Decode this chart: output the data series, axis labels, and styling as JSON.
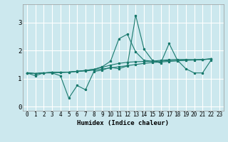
{
  "xlabel": "Humidex (Indice chaleur)",
  "background_color": "#cce8ee",
  "grid_color": "#ffffff",
  "line_color": "#1a7a6e",
  "xlim": [
    -0.5,
    23.5
  ],
  "ylim": [
    -0.15,
    3.65
  ],
  "xticks": [
    0,
    1,
    2,
    3,
    4,
    5,
    6,
    7,
    8,
    9,
    10,
    11,
    12,
    13,
    14,
    15,
    16,
    17,
    18,
    19,
    20,
    21,
    22,
    23
  ],
  "yticks": [
    0,
    1,
    2,
    3
  ],
  "s1_x": [
    0,
    1,
    2,
    3,
    4,
    5,
    6,
    7,
    8,
    9,
    10,
    11,
    12,
    13,
    14,
    15,
    16,
    17,
    18,
    19,
    20,
    21,
    22
  ],
  "s1_y": [
    1.2,
    1.1,
    1.2,
    1.2,
    1.1,
    0.3,
    0.75,
    0.6,
    1.25,
    1.3,
    1.4,
    1.35,
    1.45,
    3.25,
    2.05,
    1.65,
    1.55,
    2.25,
    1.65,
    1.35,
    1.2,
    1.2,
    1.65
  ],
  "s2_x": [
    0,
    1,
    2,
    3,
    4,
    5,
    6,
    7,
    8,
    9,
    10,
    11,
    12,
    13,
    14,
    15,
    16,
    17,
    18,
    19,
    20,
    21,
    22
  ],
  "s2_y": [
    1.2,
    1.18,
    1.2,
    1.22,
    1.22,
    1.23,
    1.25,
    1.27,
    1.3,
    1.34,
    1.38,
    1.42,
    1.46,
    1.5,
    1.54,
    1.57,
    1.59,
    1.61,
    1.63,
    1.65,
    1.66,
    1.67,
    1.7
  ],
  "s3_x": [
    0,
    1,
    2,
    3,
    4,
    5,
    6,
    7,
    8,
    9,
    10,
    11,
    12,
    13,
    14,
    15,
    16,
    17,
    18,
    19,
    20,
    21,
    22
  ],
  "s3_y": [
    1.2,
    1.18,
    1.2,
    1.22,
    1.22,
    1.23,
    1.26,
    1.29,
    1.33,
    1.4,
    1.48,
    1.54,
    1.58,
    1.6,
    1.61,
    1.61,
    1.62,
    1.64,
    1.65,
    1.66,
    1.67,
    1.68,
    1.7
  ],
  "s4_x": [
    0,
    1,
    2,
    3,
    4,
    5,
    6,
    7,
    8,
    9,
    10,
    11,
    12,
    13,
    14,
    15,
    16,
    17,
    18,
    19,
    20,
    21,
    22
  ],
  "s4_y": [
    1.2,
    1.18,
    1.2,
    1.22,
    1.22,
    1.23,
    1.26,
    1.29,
    1.33,
    1.42,
    1.62,
    2.42,
    2.58,
    1.95,
    1.65,
    1.62,
    1.65,
    1.67,
    1.68,
    1.68,
    1.67,
    1.68,
    1.7
  ],
  "lw": 0.8,
  "ms": 2.2,
  "xlabel_fontsize": 6.5,
  "tick_fontsize": 5.5
}
